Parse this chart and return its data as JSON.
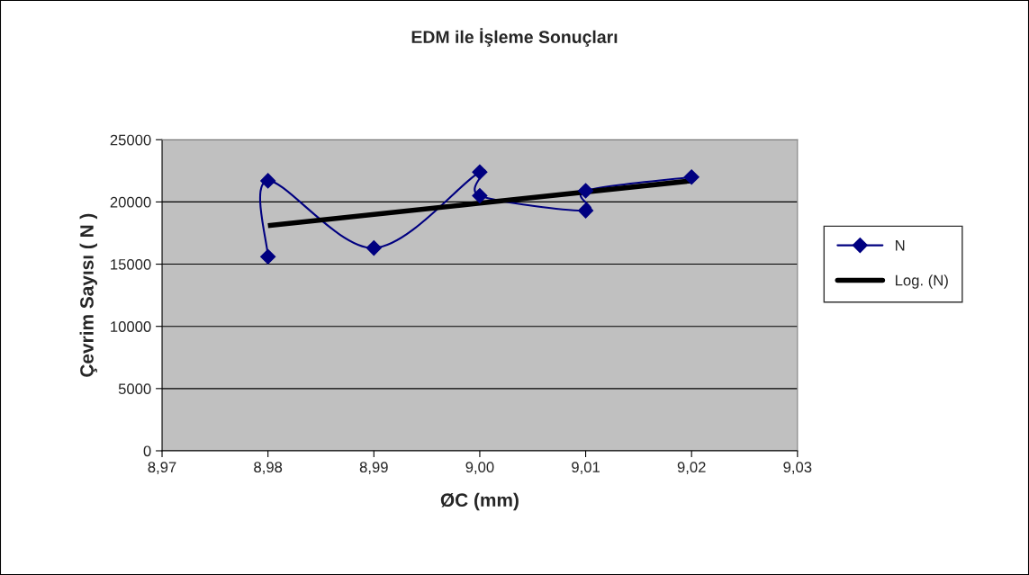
{
  "chart_data": {
    "type": "line",
    "title": "EDM ile İşleme Sonuçları",
    "xlabel": "ØC (mm)",
    "ylabel": "Çevrim Sayısı ( N )",
    "xlim": [
      8.97,
      9.03
    ],
    "xticks": [
      {
        "value": 8.97,
        "label": "8,97"
      },
      {
        "value": 8.98,
        "label": "8,98"
      },
      {
        "value": 8.99,
        "label": "8,99"
      },
      {
        "value": 9.0,
        "label": "9,00"
      },
      {
        "value": 9.01,
        "label": "9,01"
      },
      {
        "value": 9.02,
        "label": "9,02"
      },
      {
        "value": 9.03,
        "label": "9,03"
      }
    ],
    "ylim": [
      0,
      25000
    ],
    "yticks": [
      0,
      5000,
      10000,
      15000,
      20000,
      25000
    ],
    "grid": "y",
    "legend": "right",
    "series": [
      {
        "name": "N",
        "color": "#000080",
        "marker": "diamond",
        "x": [
          8.98,
          8.98,
          8.99,
          9.0,
          9.0,
          9.01,
          9.01,
          9.02
        ],
        "values": [
          15600,
          21700,
          16300,
          22400,
          20500,
          19300,
          20900,
          22000
        ]
      },
      {
        "name": "Log. (N)",
        "type": "line",
        "color": "#000000",
        "marker": "none",
        "x": [
          8.98,
          9.02
        ],
        "values": [
          18100,
          21700
        ]
      }
    ]
  }
}
